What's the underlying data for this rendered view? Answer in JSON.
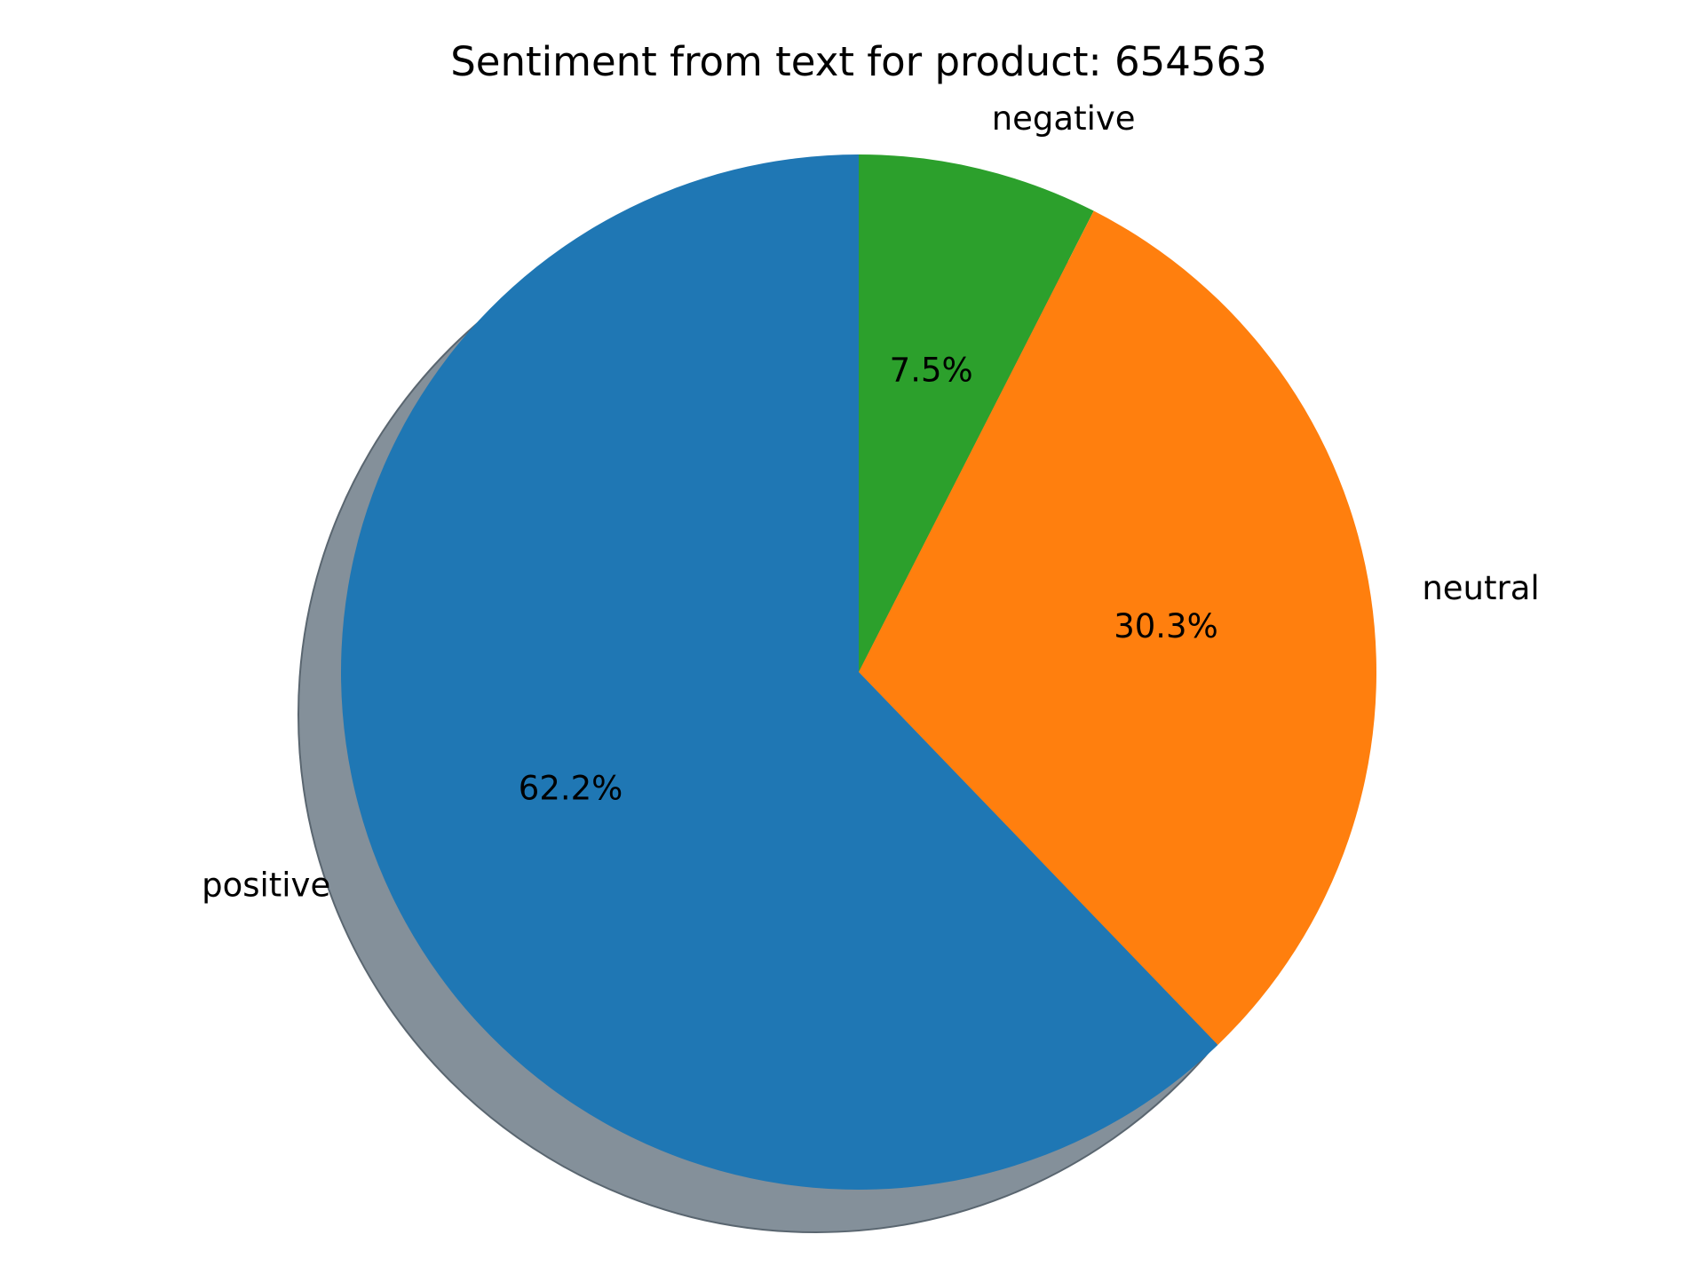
{
  "chart_data": {
    "type": "pie",
    "title": "Sentiment from text for product: 654563",
    "start_angle_deg": 90,
    "direction": "clockwise",
    "shadow": true,
    "equal_aspect": true,
    "slices": [
      {
        "label": "negative",
        "value": 7.5,
        "pct_label": "7.5%",
        "color": "#2ca02c"
      },
      {
        "label": "neutral",
        "value": 30.3,
        "pct_label": "30.3%",
        "color": "#ff7f0e"
      },
      {
        "label": "positive",
        "value": 62.2,
        "pct_label": "62.2%",
        "color": "#1f77b4"
      }
    ],
    "shadow_color": "#84909a"
  }
}
